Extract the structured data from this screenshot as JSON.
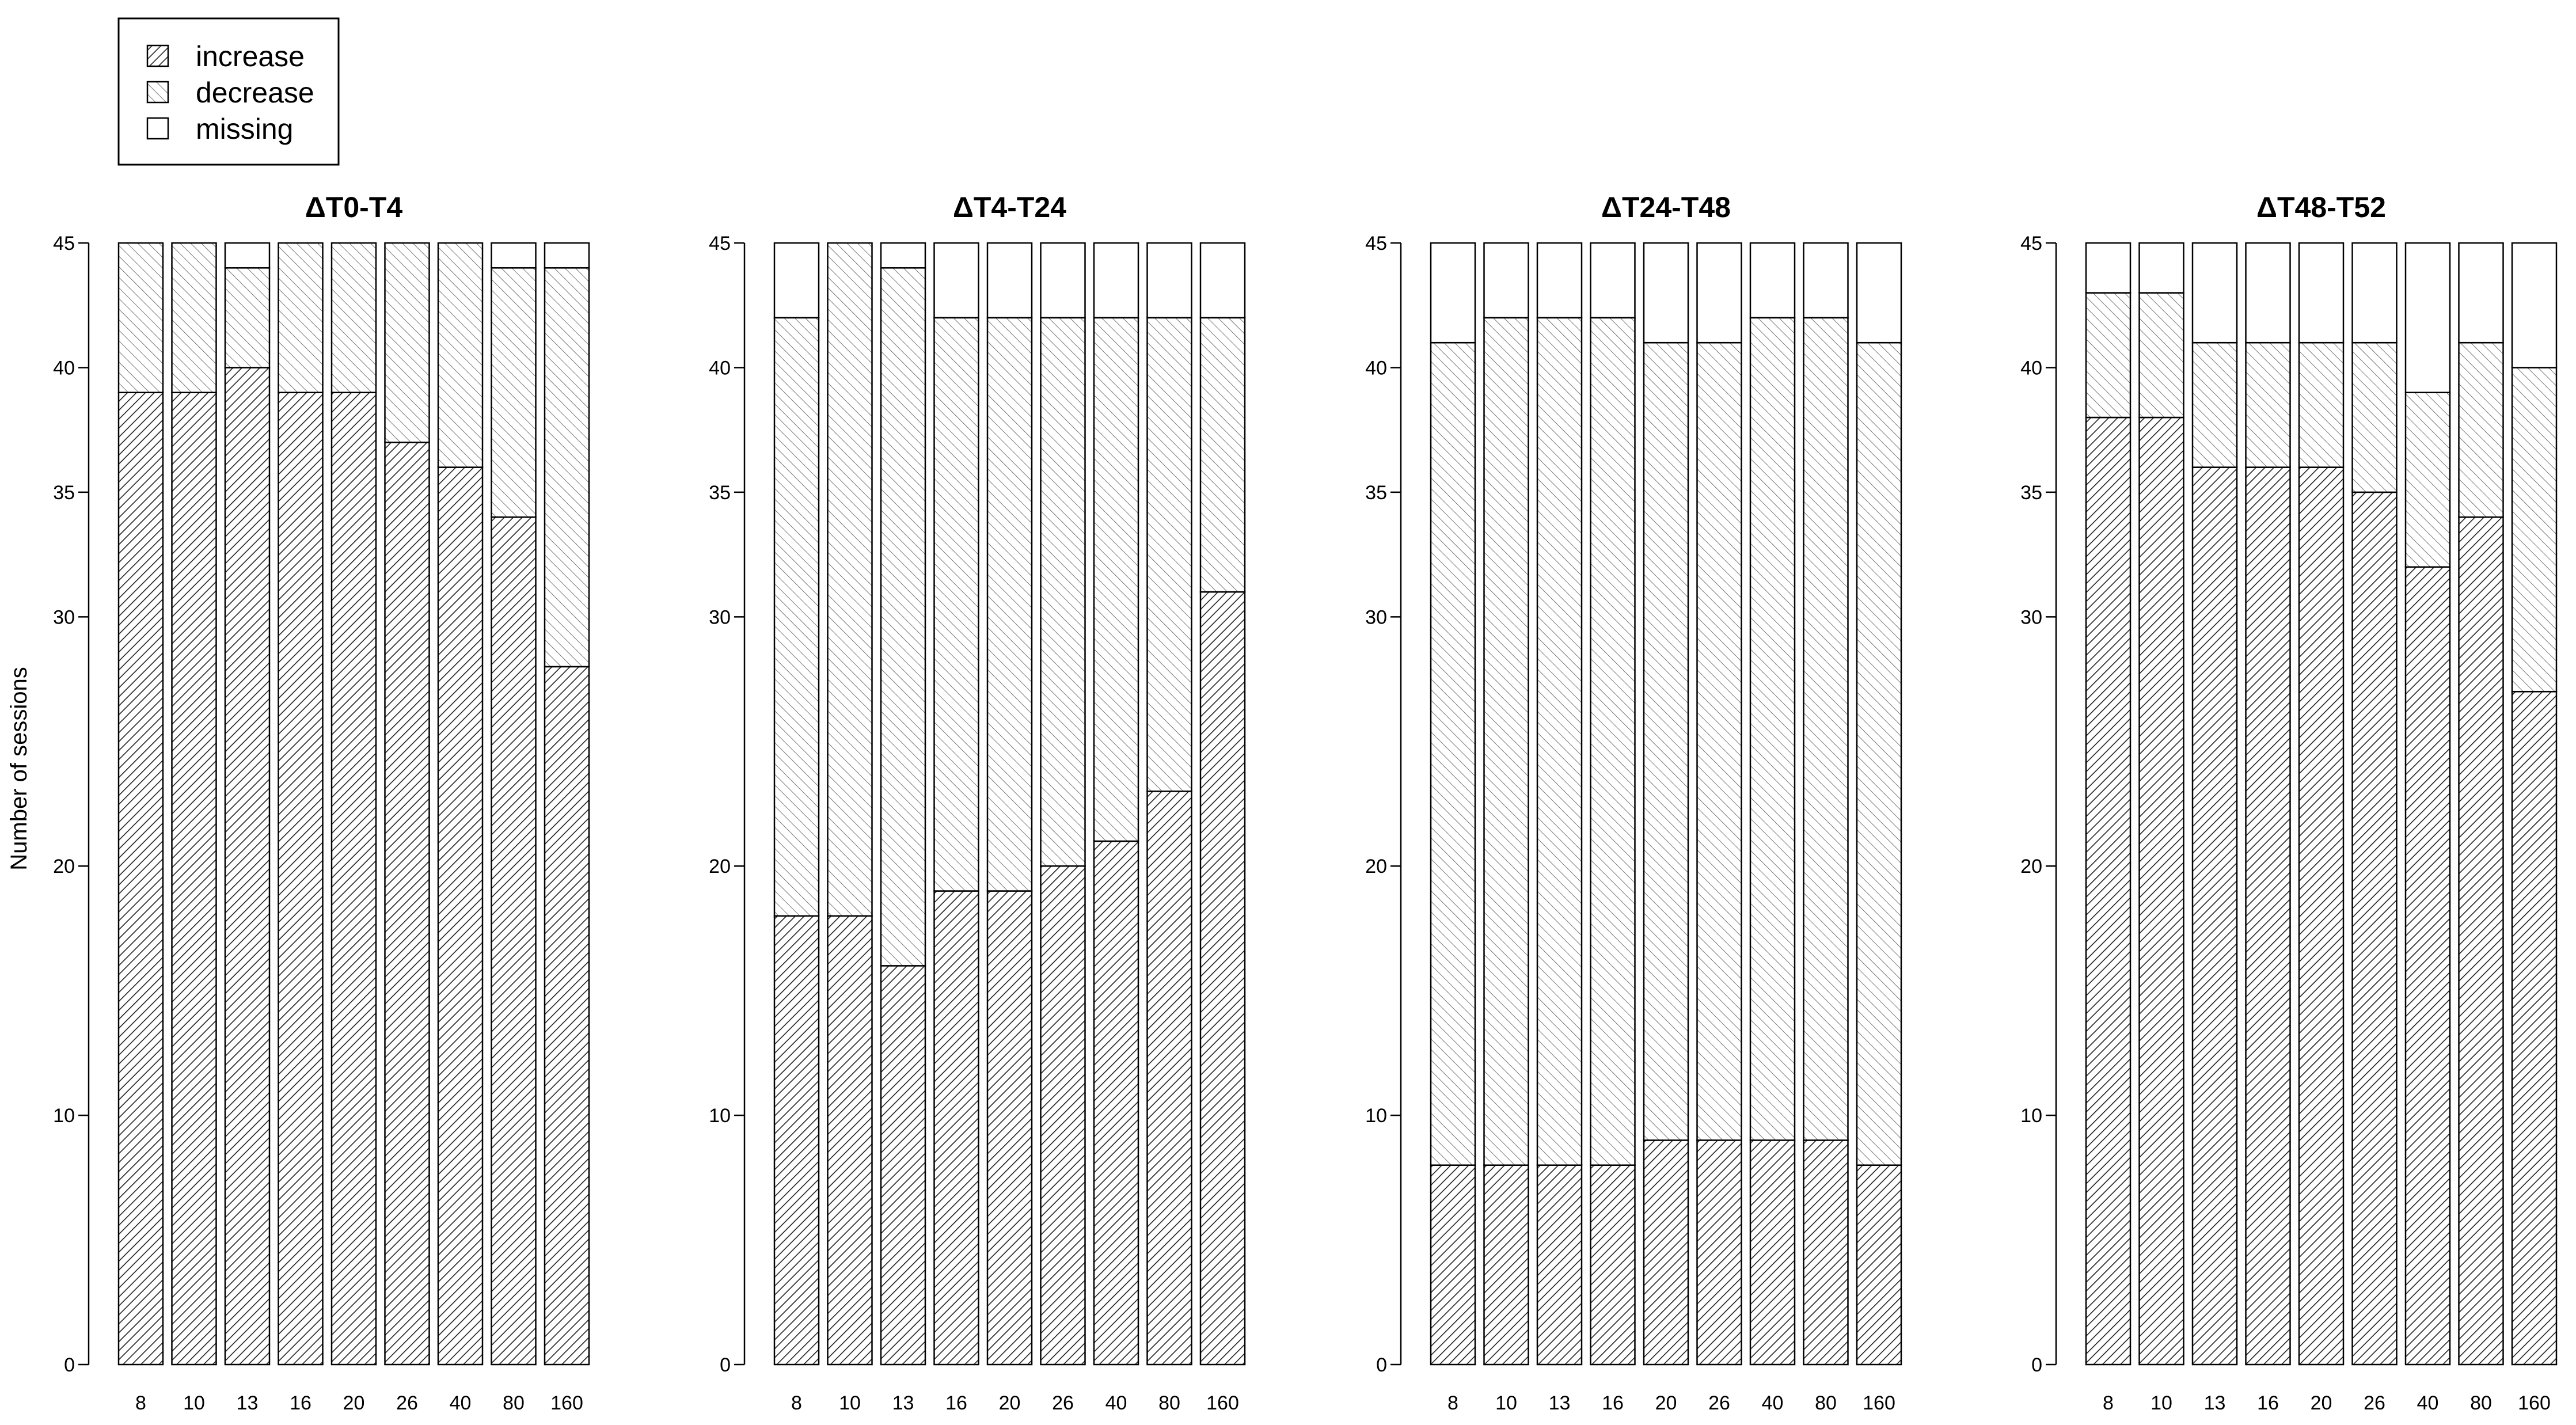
{
  "chart_data": {
    "type": "bar",
    "stacked": true,
    "ylabel": "Number of sessions",
    "ylim": [
      0,
      45
    ],
    "yticks": [
      0,
      10,
      20,
      30,
      35,
      40,
      45
    ],
    "categories": [
      "8",
      "10",
      "13",
      "16",
      "20",
      "26",
      "40",
      "80",
      "160"
    ],
    "legend": {
      "position": "top-left",
      "entries": [
        {
          "label": "increase",
          "pattern": "dense-hatch"
        },
        {
          "label": "decrease",
          "pattern": "light-hatch"
        },
        {
          "label": "missing",
          "pattern": "empty"
        }
      ]
    },
    "panels": [
      {
        "title": "ΔT0-T4",
        "series": [
          {
            "name": "increase",
            "values": [
              39,
              39,
              40,
              39,
              39,
              37,
              36,
              34,
              28
            ]
          },
          {
            "name": "decrease",
            "values": [
              6,
              6,
              4,
              6,
              6,
              8,
              9,
              10,
              16
            ]
          },
          {
            "name": "missing",
            "values": [
              0,
              0,
              1,
              0,
              0,
              0,
              0,
              1,
              1
            ]
          }
        ]
      },
      {
        "title": "ΔT4-T24",
        "series": [
          {
            "name": "increase",
            "values": [
              18,
              18,
              16,
              19,
              19,
              20,
              21,
              23,
              31
            ]
          },
          {
            "name": "decrease",
            "values": [
              24,
              27,
              28,
              23,
              23,
              22,
              21,
              19,
              11
            ]
          },
          {
            "name": "missing",
            "values": [
              3,
              0,
              1,
              3,
              3,
              3,
              3,
              3,
              3
            ]
          }
        ]
      },
      {
        "title": "ΔT24-T48",
        "series": [
          {
            "name": "increase",
            "values": [
              8,
              8,
              8,
              8,
              9,
              9,
              9,
              9,
              8
            ]
          },
          {
            "name": "decrease",
            "values": [
              33,
              34,
              34,
              34,
              32,
              32,
              33,
              33,
              33
            ]
          },
          {
            "name": "missing",
            "values": [
              4,
              3,
              3,
              3,
              4,
              4,
              3,
              3,
              4
            ]
          }
        ]
      },
      {
        "title": "ΔT48-T52",
        "series": [
          {
            "name": "increase",
            "values": [
              38,
              38,
              36,
              36,
              36,
              35,
              32,
              34,
              27
            ]
          },
          {
            "name": "decrease",
            "values": [
              5,
              5,
              5,
              5,
              5,
              6,
              7,
              7,
              13
            ]
          },
          {
            "name": "missing",
            "values": [
              2,
              2,
              4,
              4,
              4,
              4,
              6,
              4,
              5
            ]
          }
        ]
      }
    ]
  }
}
